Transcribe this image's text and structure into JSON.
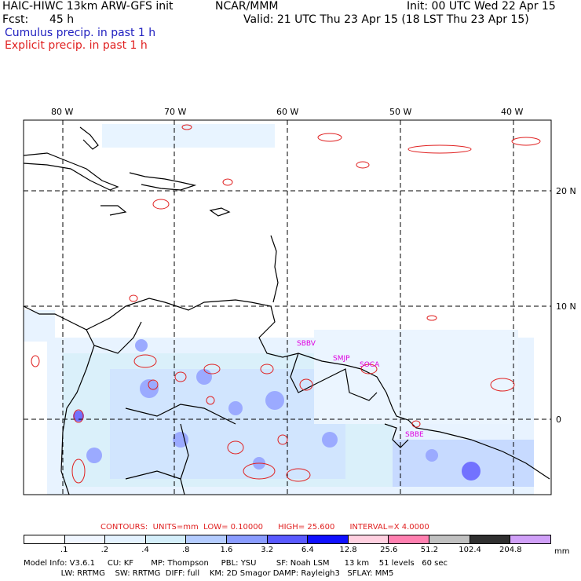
{
  "header": {
    "model_line": "HAIC-HIWC 13km ARW-GFS init",
    "org": "NCAR/MMM",
    "fcst_label": "Fcst:",
    "fcst_value": "45 h",
    "init": "Init: 00 UTC Wed 22 Apr 15",
    "valid": "Valid: 21 UTC Thu 23 Apr 15 (18 LST Thu 23 Apr 15)",
    "field1": "Cumulus precip. in past 1 h",
    "field2": "Explicit precip. in past 1 h"
  },
  "map": {
    "lon_labels": [
      "80 W",
      "70 W",
      "60 W",
      "50 W",
      "40 W"
    ],
    "lat_labels": [
      "20 N",
      "10 N",
      "0"
    ],
    "stations": [
      "SBBV",
      "SMJP",
      "SOCA",
      "SBBE"
    ]
  },
  "contours": {
    "label": "CONTOURS:",
    "units": "UNITS=mm",
    "low": "LOW= 0.10000",
    "high": "HIGH= 25.600",
    "interval": "INTERVAL=X 4.0000"
  },
  "colorscale": {
    "labels": [
      ".1",
      ".2",
      ".4",
      ".8",
      "1.6",
      "3.2",
      "6.4",
      "12.8",
      "25.6",
      "51.2",
      "102.4",
      "204.8"
    ],
    "units": "mm",
    "colors": [
      "#ffffff",
      "#f0f6ff",
      "#e4f2ff",
      "#d4eefa",
      "#b4ccff",
      "#8a9cff",
      "#5a5aff",
      "#1010ff",
      "#ffd0e0",
      "#ff80b0",
      "#c0c0c0",
      "#303030",
      "#d0a0f8"
    ]
  },
  "footer": {
    "line1": "Model Info: V3.6.1     CU: KF       MP: Thompson     PBL: YSU        SF: Noah LSM      13 km    51 levels   60 sec",
    "line2": "               LW: RRTMG    SW: RRTMG  DIFF: full    KM: 2D Smagor DAMP: Rayleigh3   SFLAY: MM5"
  }
}
